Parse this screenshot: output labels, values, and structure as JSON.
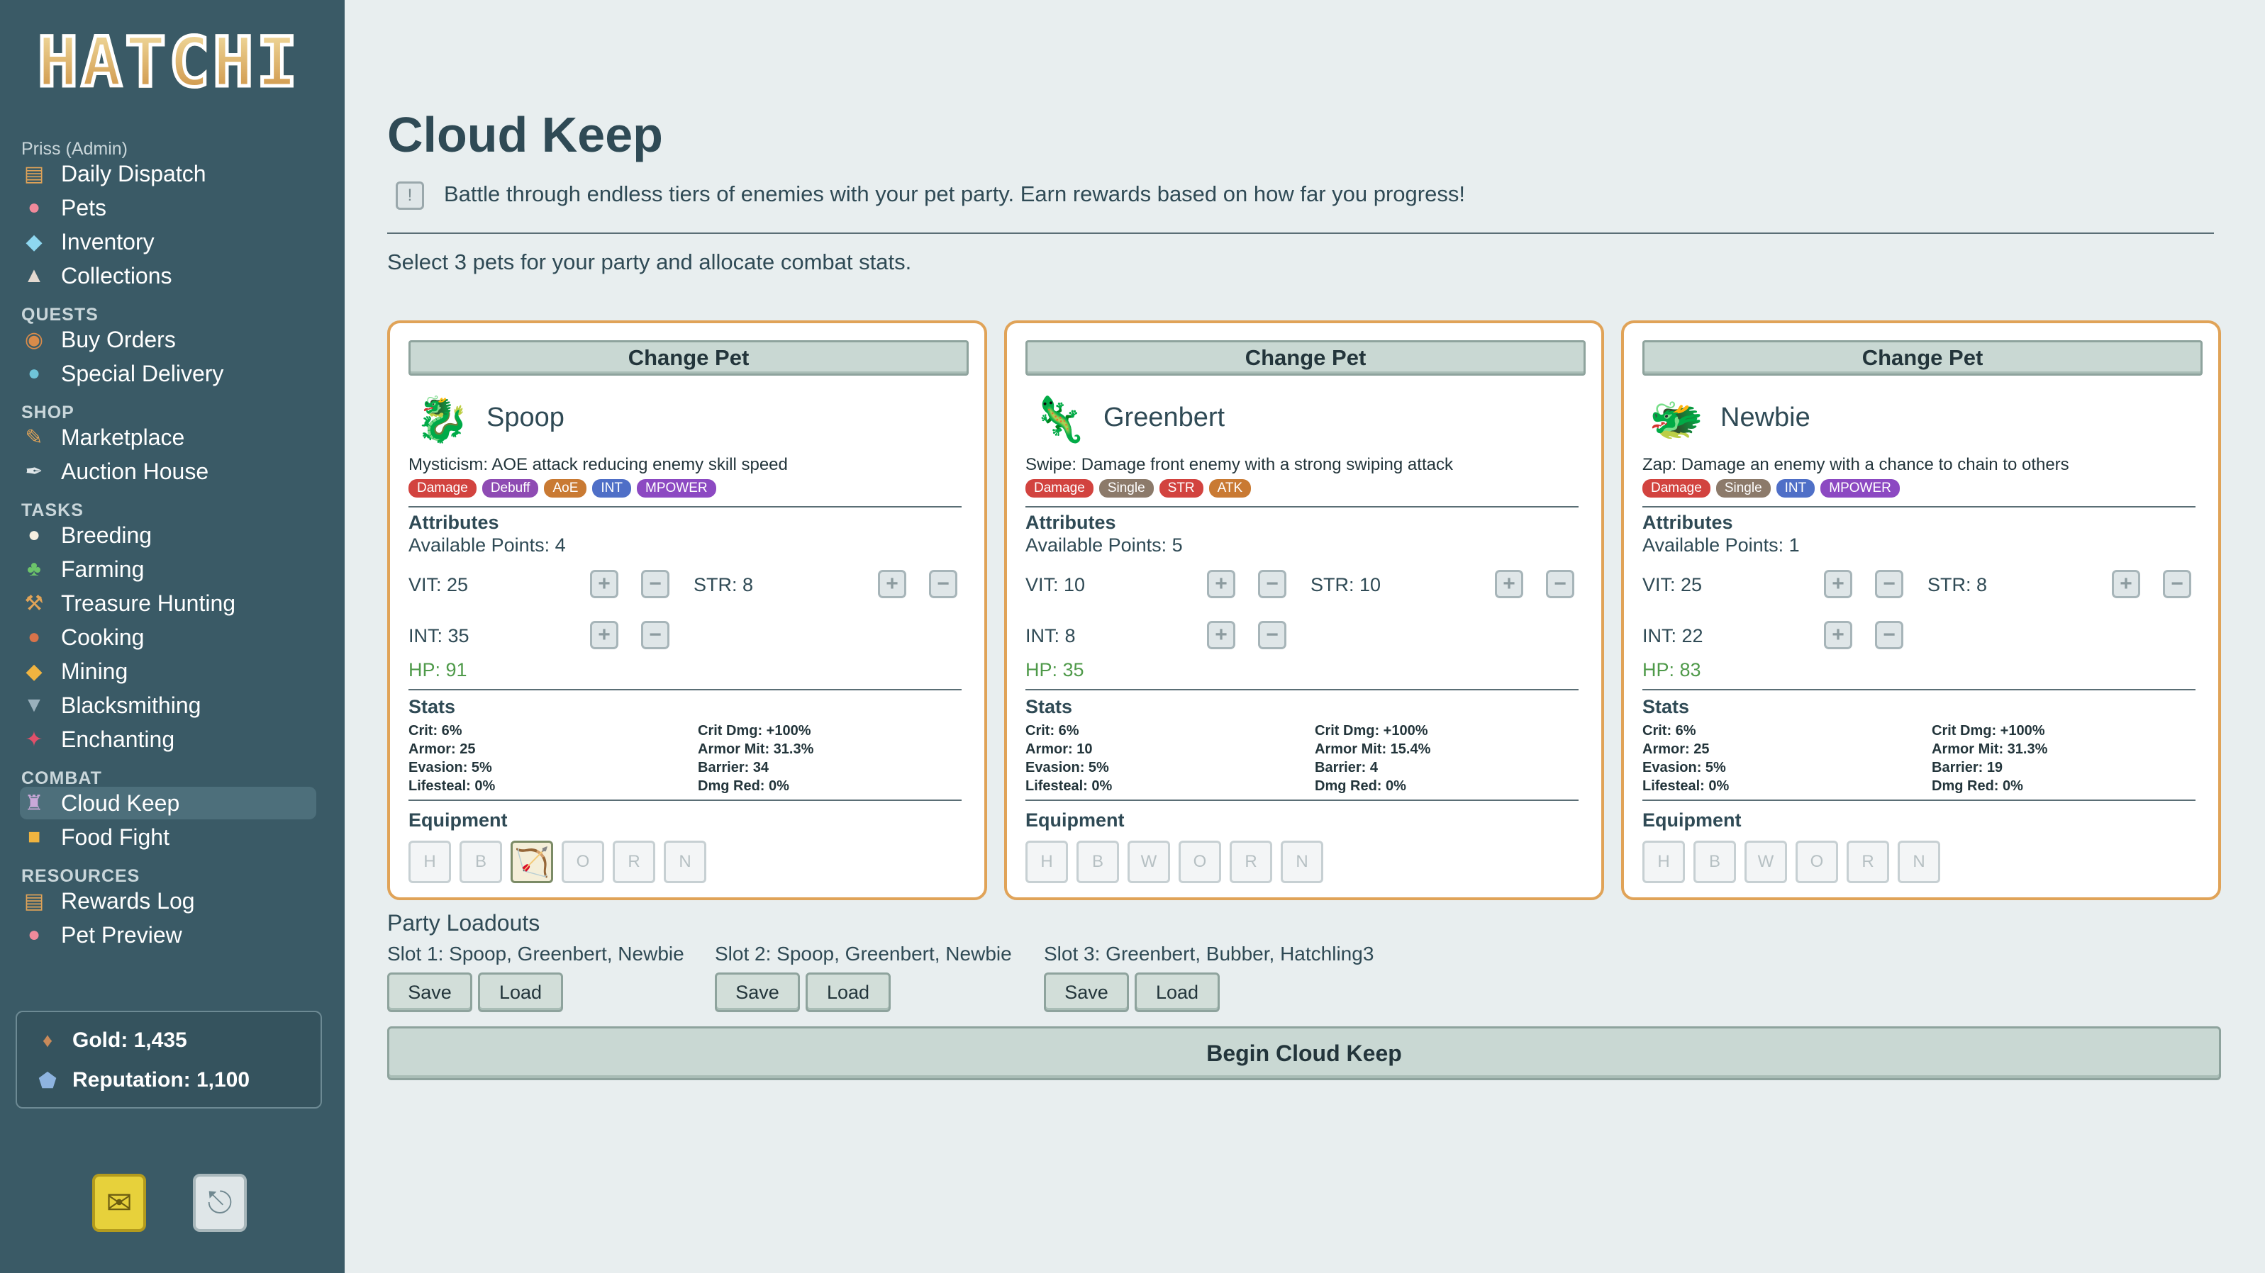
{
  "sidebar": {
    "logo": "HATCHI",
    "user": "Priss (Admin)",
    "nav_top": [
      {
        "label": "Daily Dispatch",
        "icon": "scroll-icon"
      },
      {
        "label": "Pets",
        "icon": "paw-icon"
      },
      {
        "label": "Inventory",
        "icon": "gem-icon"
      },
      {
        "label": "Collections",
        "icon": "collection-icon"
      }
    ],
    "quests_label": "QUESTS",
    "quests": [
      {
        "label": "Buy Orders",
        "icon": "bread-icon"
      },
      {
        "label": "Special Delivery",
        "icon": "drop-icon"
      }
    ],
    "shop_label": "SHOP",
    "shop": [
      {
        "label": "Marketplace",
        "icon": "quill-icon"
      },
      {
        "label": "Auction House",
        "icon": "feather-icon"
      }
    ],
    "tasks_label": "TASKS",
    "tasks": [
      {
        "label": "Breeding",
        "icon": "egg-icon"
      },
      {
        "label": "Farming",
        "icon": "plant-icon"
      },
      {
        "label": "Treasure Hunting",
        "icon": "shovel-icon"
      },
      {
        "label": "Cooking",
        "icon": "meat-icon"
      },
      {
        "label": "Mining",
        "icon": "ore-icon"
      },
      {
        "label": "Blacksmithing",
        "icon": "anvil-icon"
      },
      {
        "label": "Enchanting",
        "icon": "magic-icon"
      }
    ],
    "combat_label": "COMBAT",
    "combat": [
      {
        "label": "Cloud Keep",
        "icon": "castle-icon",
        "active": true
      },
      {
        "label": "Food Fight",
        "icon": "food-icon"
      }
    ],
    "resources_label": "RESOURCES",
    "resources": [
      {
        "label": "Rewards Log",
        "icon": "log-icon"
      },
      {
        "label": "Pet Preview",
        "icon": "preview-icon"
      }
    ],
    "gold": "Gold: 1,435",
    "reputation": "Reputation: 1,100"
  },
  "page": {
    "title": "Cloud Keep",
    "description": "Battle through endless tiers of enemies with your pet party. Earn rewards based on how far you progress!",
    "subtitle": "Select 3 pets for your party and allocate combat stats."
  },
  "labels": {
    "change_pet": "Change Pet",
    "attributes": "Attributes",
    "stats": "Stats",
    "equipment": "Equipment",
    "plus": "+",
    "minus": "−"
  },
  "pets": [
    {
      "name": "Spoop",
      "skill": "Mysticism: AOE attack reducing enemy skill speed",
      "tags": [
        {
          "text": "Damage",
          "color": "#d2433f"
        },
        {
          "text": "Debuff",
          "color": "#8e4bb3"
        },
        {
          "text": "AoE",
          "color": "#c97a33"
        },
        {
          "text": "INT",
          "color": "#4f6fc7"
        },
        {
          "text": "MPOWER",
          "color": "#8c49c2"
        }
      ],
      "available": "Available Points: 4",
      "vit": "VIT: 25",
      "str": "STR: 8",
      "int": "INT: 35",
      "hp": "HP: 91",
      "stats": {
        "crit": "Crit: 6%",
        "armor": "Armor: 25",
        "evasion": "Evasion: 5%",
        "lifesteal": "Lifesteal: 0%",
        "critdmg": "Crit Dmg: +100%",
        "armormit": "Armor Mit: 31.3%",
        "barrier": "Barrier: 34",
        "dmgred": "Dmg Red: 0%"
      },
      "equipment": [
        "H",
        "B",
        "",
        "O",
        "R",
        "N"
      ]
    },
    {
      "name": "Greenbert",
      "skill": "Swipe: Damage front enemy with a strong swiping attack",
      "tags": [
        {
          "text": "Damage",
          "color": "#d2433f"
        },
        {
          "text": "Single",
          "color": "#8c7a6a"
        },
        {
          "text": "STR",
          "color": "#d2433f"
        },
        {
          "text": "ATK",
          "color": "#c97a33"
        }
      ],
      "available": "Available Points: 5",
      "vit": "VIT: 10",
      "str": "STR: 10",
      "int": "INT: 8",
      "hp": "HP: 35",
      "stats": {
        "crit": "Crit: 6%",
        "armor": "Armor: 10",
        "evasion": "Evasion: 5%",
        "lifesteal": "Lifesteal: 0%",
        "critdmg": "Crit Dmg: +100%",
        "armormit": "Armor Mit: 15.4%",
        "barrier": "Barrier: 4",
        "dmgred": "Dmg Red: 0%"
      },
      "equipment": [
        "H",
        "B",
        "W",
        "O",
        "R",
        "N"
      ]
    },
    {
      "name": "Newbie",
      "skill": "Zap: Damage an enemy with a chance to chain to others",
      "tags": [
        {
          "text": "Damage",
          "color": "#d2433f"
        },
        {
          "text": "Single",
          "color": "#8c7a6a"
        },
        {
          "text": "INT",
          "color": "#4f6fc7"
        },
        {
          "text": "MPOWER",
          "color": "#8c49c2"
        }
      ],
      "available": "Available Points: 1",
      "vit": "VIT: 25",
      "str": "STR: 8",
      "int": "INT: 22",
      "hp": "HP: 83",
      "stats": {
        "crit": "Crit: 6%",
        "armor": "Armor: 25",
        "evasion": "Evasion: 5%",
        "lifesteal": "Lifesteal: 0%",
        "critdmg": "Crit Dmg: +100%",
        "armormit": "Armor Mit: 31.3%",
        "barrier": "Barrier: 19",
        "dmgred": "Dmg Red: 0%"
      },
      "equipment": [
        "H",
        "B",
        "W",
        "O",
        "R",
        "N"
      ]
    }
  ],
  "loadouts": {
    "title": "Party Loadouts",
    "slots": [
      {
        "label": "Slot 1: Spoop, Greenbert, Newbie"
      },
      {
        "label": "Slot 2: Spoop, Greenbert, Newbie"
      },
      {
        "label": "Slot 3: Greenbert, Bubber, Hatchling3"
      }
    ],
    "save": "Save",
    "load": "Load"
  },
  "begin": "Begin Cloud Keep",
  "colors": {
    "sidebar": "#3a5a66",
    "card_border": "#e0a358",
    "hp": "#4f9a4a"
  }
}
